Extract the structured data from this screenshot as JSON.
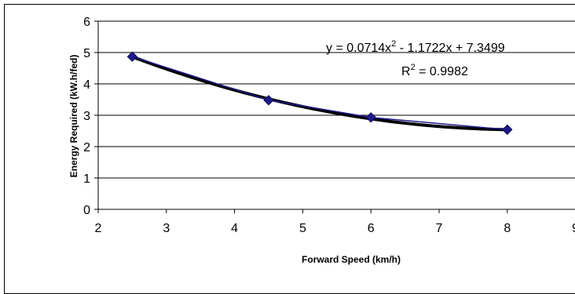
{
  "chart_data": {
    "type": "scatter",
    "xlabel": "Forward Speed (km/h)",
    "ylabel": "Energy Required (kW.h/fed)",
    "xlim": [
      2,
      9
    ],
    "ylim": [
      0,
      6
    ],
    "xticks": [
      "2",
      "3",
      "4",
      "5",
      "6",
      "7",
      "8",
      "9"
    ],
    "yticks": [
      "0",
      "1",
      "2",
      "3",
      "4",
      "5",
      "6"
    ],
    "grid": "horizontal",
    "series": [
      {
        "x": [
          2.5,
          4.5,
          6,
          8
        ],
        "y": [
          4.87,
          3.48,
          2.93,
          2.54
        ],
        "color": "#1f1a8c",
        "marker": "diamond"
      }
    ],
    "trendline": {
      "kind": "polynomial",
      "coefficients": [
        0.0714,
        -1.1722,
        7.3499
      ],
      "color": "#000000"
    },
    "annotations": {
      "equation_prefix": "y = 0.0714x",
      "equation_sup": "2",
      "equation_suffix": " - 1.1722x + 7.3499",
      "r2_prefix": "R",
      "r2_sup": "2",
      "r2_suffix": " = 0.9982"
    }
  }
}
